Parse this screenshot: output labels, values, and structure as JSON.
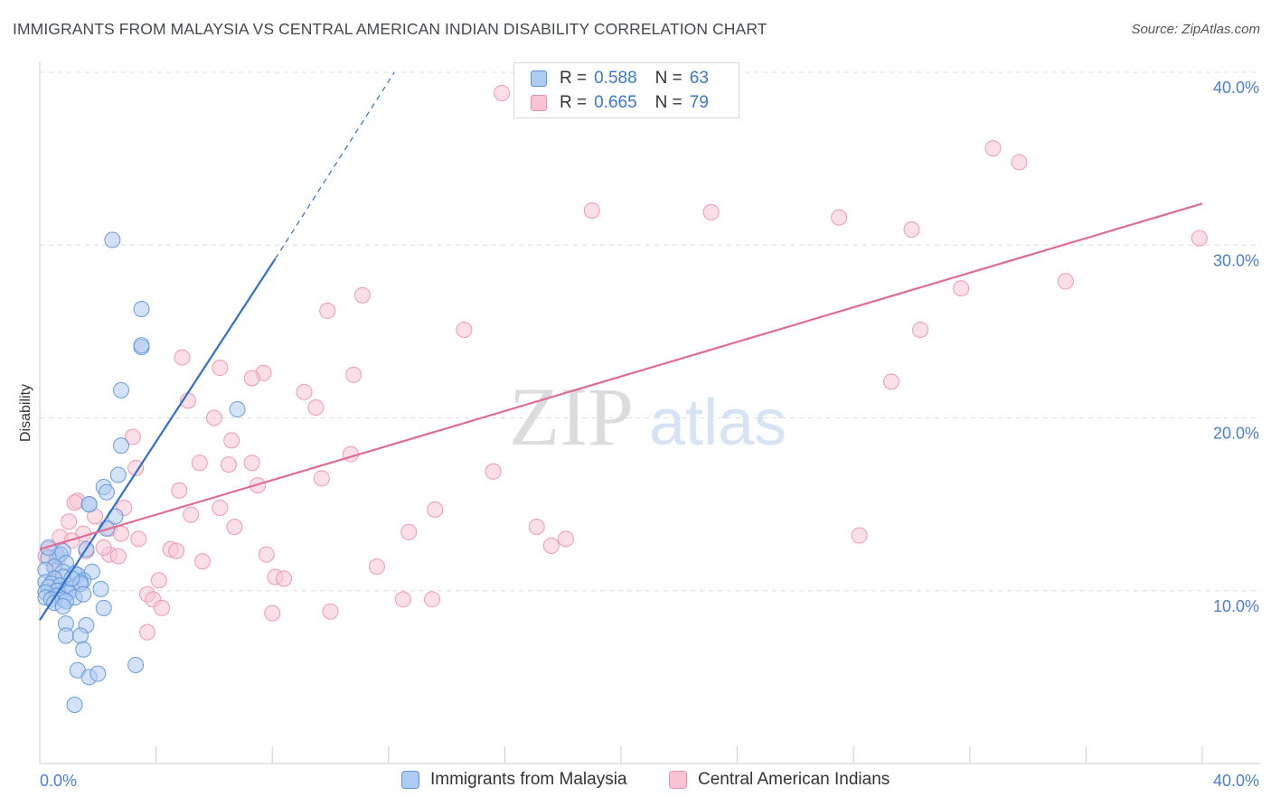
{
  "title": "IMMIGRANTS FROM MALAYSIA VS CENTRAL AMERICAN INDIAN DISABILITY CORRELATION CHART",
  "source": "Source: ZipAtlas.com",
  "watermark": {
    "zip": "ZIP",
    "atlas": "atlas"
  },
  "legend": {
    "rows": [
      {
        "r_label": "R = ",
        "r_value": "0.588",
        "n_label": "N = ",
        "n_value": "63"
      },
      {
        "r_label": "R = ",
        "r_value": "0.665",
        "n_label": "N = ",
        "n_value": "79"
      }
    ]
  },
  "colors": {
    "blue_fill": "#aecbf1",
    "blue_stroke": "#5b93d8",
    "blue_line": "#2f6fce",
    "pink_fill": "#f8c4d4",
    "pink_stroke": "#ec8fac",
    "pink_line": "#e06b93",
    "tick_text": "#4a7fd0",
    "grid": "#dddddd"
  },
  "chart_data": {
    "type": "scatter",
    "title": "IMMIGRANTS FROM MALAYSIA VS CENTRAL AMERICAN INDIAN DISABILITY CORRELATION CHART",
    "xlabel": "",
    "ylabel": "Disability",
    "xlim": [
      0,
      40
    ],
    "ylim": [
      0,
      40
    ],
    "x_tick_labels": [
      "0.0%",
      "40.0%"
    ],
    "y_ticks": [
      10,
      20,
      30,
      40
    ],
    "y_tick_labels": [
      "10.0%",
      "20.0%",
      "30.0%",
      "40.0%"
    ],
    "legend_position": "top-center",
    "grid": true,
    "series": [
      {
        "name": "Immigrants from Malaysia",
        "r": 0.588,
        "n": 63,
        "trend": {
          "x": [
            0,
            8.1
          ],
          "y": [
            8.3,
            29.2
          ],
          "dashed_to": [
            12.2,
            40.0
          ]
        },
        "points": [
          [
            2.5,
            30.3
          ],
          [
            3.5,
            26.3
          ],
          [
            3.5,
            24.1
          ],
          [
            3.5,
            24.2
          ],
          [
            2.8,
            21.6
          ],
          [
            6.8,
            20.5
          ],
          [
            2.8,
            18.4
          ],
          [
            2.7,
            16.7
          ],
          [
            2.2,
            16.0
          ],
          [
            2.3,
            15.7
          ],
          [
            1.7,
            15.0
          ],
          [
            1.7,
            15.0
          ],
          [
            2.6,
            14.3
          ],
          [
            2.3,
            13.6
          ],
          [
            1.6,
            12.4
          ],
          [
            0.8,
            12.3
          ],
          [
            0.6,
            12.0
          ],
          [
            0.7,
            12.1
          ],
          [
            0.3,
            11.9
          ],
          [
            0.9,
            11.6
          ],
          [
            0.5,
            11.4
          ],
          [
            0.2,
            11.2
          ],
          [
            0.8,
            11.1
          ],
          [
            1.2,
            11.0
          ],
          [
            1.3,
            10.9
          ],
          [
            0.8,
            10.8
          ],
          [
            0.5,
            10.7
          ],
          [
            1.8,
            11.1
          ],
          [
            1.5,
            10.6
          ],
          [
            1.4,
            10.5
          ],
          [
            0.2,
            10.5
          ],
          [
            0.4,
            10.4
          ],
          [
            0.7,
            10.3
          ],
          [
            0.3,
            10.2
          ],
          [
            0.9,
            10.1
          ],
          [
            1.1,
            10.1
          ],
          [
            0.6,
            10.0
          ],
          [
            0.2,
            9.9
          ],
          [
            1.0,
            9.9
          ],
          [
            0.6,
            9.7
          ],
          [
            0.2,
            9.6
          ],
          [
            1.2,
            9.6
          ],
          [
            0.4,
            9.5
          ],
          [
            0.8,
            9.5
          ],
          [
            0.5,
            9.3
          ],
          [
            0.9,
            9.4
          ],
          [
            2.1,
            10.1
          ],
          [
            1.4,
            10.4
          ],
          [
            0.8,
            9.1
          ],
          [
            2.2,
            9.0
          ],
          [
            0.9,
            8.1
          ],
          [
            1.6,
            8.0
          ],
          [
            0.9,
            7.4
          ],
          [
            1.4,
            7.4
          ],
          [
            1.5,
            6.6
          ],
          [
            1.3,
            5.4
          ],
          [
            1.7,
            5.0
          ],
          [
            2.0,
            5.2
          ],
          [
            3.3,
            5.7
          ],
          [
            1.2,
            3.4
          ],
          [
            0.3,
            12.5
          ],
          [
            1.1,
            10.7
          ],
          [
            1.5,
            9.8
          ]
        ]
      },
      {
        "name": "Central American Indians",
        "r": 0.665,
        "n": 79,
        "trend": {
          "x": [
            0,
            40
          ],
          "y": [
            12.4,
            32.4
          ]
        },
        "points": [
          [
            15.9,
            38.8
          ],
          [
            32.8,
            35.6
          ],
          [
            33.7,
            34.8
          ],
          [
            19.0,
            32.0
          ],
          [
            23.1,
            31.9
          ],
          [
            27.5,
            31.6
          ],
          [
            30.0,
            30.9
          ],
          [
            39.9,
            30.4
          ],
          [
            35.3,
            27.9
          ],
          [
            31.7,
            27.5
          ],
          [
            11.1,
            27.1
          ],
          [
            9.9,
            26.2
          ],
          [
            14.6,
            25.1
          ],
          [
            30.3,
            25.1
          ],
          [
            4.9,
            23.5
          ],
          [
            6.2,
            22.9
          ],
          [
            7.7,
            22.6
          ],
          [
            7.3,
            22.3
          ],
          [
            10.8,
            22.5
          ],
          [
            29.3,
            22.1
          ],
          [
            9.1,
            21.5
          ],
          [
            5.1,
            21.0
          ],
          [
            9.5,
            20.6
          ],
          [
            6.0,
            20.0
          ],
          [
            3.2,
            18.9
          ],
          [
            6.6,
            18.7
          ],
          [
            10.7,
            17.9
          ],
          [
            5.5,
            17.4
          ],
          [
            6.5,
            17.3
          ],
          [
            7.3,
            17.4
          ],
          [
            3.3,
            17.1
          ],
          [
            15.6,
            16.9
          ],
          [
            9.7,
            16.5
          ],
          [
            7.5,
            16.1
          ],
          [
            4.8,
            15.8
          ],
          [
            1.3,
            15.2
          ],
          [
            2.9,
            14.8
          ],
          [
            6.2,
            14.8
          ],
          [
            13.6,
            14.7
          ],
          [
            5.2,
            14.4
          ],
          [
            1.9,
            14.3
          ],
          [
            1.0,
            14.0
          ],
          [
            6.7,
            13.7
          ],
          [
            2.4,
            13.6
          ],
          [
            17.1,
            13.7
          ],
          [
            12.7,
            13.4
          ],
          [
            1.5,
            13.3
          ],
          [
            0.7,
            13.1
          ],
          [
            1.1,
            12.9
          ],
          [
            2.8,
            13.3
          ],
          [
            3.4,
            13.0
          ],
          [
            18.1,
            13.0
          ],
          [
            28.2,
            13.2
          ],
          [
            17.6,
            12.6
          ],
          [
            4.5,
            12.4
          ],
          [
            4.7,
            12.3
          ],
          [
            1.6,
            12.3
          ],
          [
            2.4,
            12.1
          ],
          [
            2.7,
            12.0
          ],
          [
            7.8,
            12.1
          ],
          [
            0.3,
            12.4
          ],
          [
            0.2,
            12.0
          ],
          [
            0.6,
            11.8
          ],
          [
            5.6,
            11.7
          ],
          [
            11.6,
            11.4
          ],
          [
            0.5,
            11.3
          ],
          [
            8.1,
            10.8
          ],
          [
            8.4,
            10.7
          ],
          [
            4.1,
            10.6
          ],
          [
            3.7,
            9.8
          ],
          [
            3.9,
            9.5
          ],
          [
            12.5,
            9.5
          ],
          [
            13.5,
            9.5
          ],
          [
            4.2,
            9.0
          ],
          [
            10.0,
            8.8
          ],
          [
            8.0,
            8.7
          ],
          [
            3.7,
            7.6
          ],
          [
            1.2,
            15.1
          ],
          [
            2.2,
            12.5
          ]
        ]
      }
    ]
  }
}
